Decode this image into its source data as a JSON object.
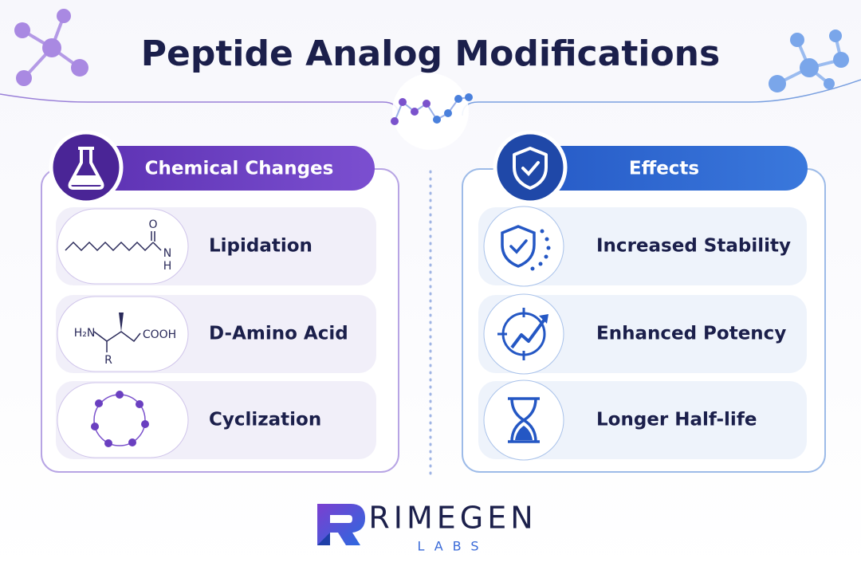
{
  "header": {
    "title": "Peptide Analog Modifications"
  },
  "panels": [
    {
      "title": "Chemical Changes",
      "items": [
        {
          "label": "Lipidation",
          "structure": [
            "O",
            "N",
            "H"
          ]
        },
        {
          "label": "D-Amino Acid",
          "structure": [
            "H₂N",
            "COOH",
            "R"
          ]
        },
        {
          "label": "Cyclization"
        }
      ]
    },
    {
      "title": "Effects",
      "items": [
        {
          "label": "Increased Stability"
        },
        {
          "label": "Enhanced Potency"
        },
        {
          "label": "Longer Half-life"
        }
      ]
    }
  ],
  "footer": {
    "brand": "RIMEGEN",
    "subbrand": "LABS"
  }
}
